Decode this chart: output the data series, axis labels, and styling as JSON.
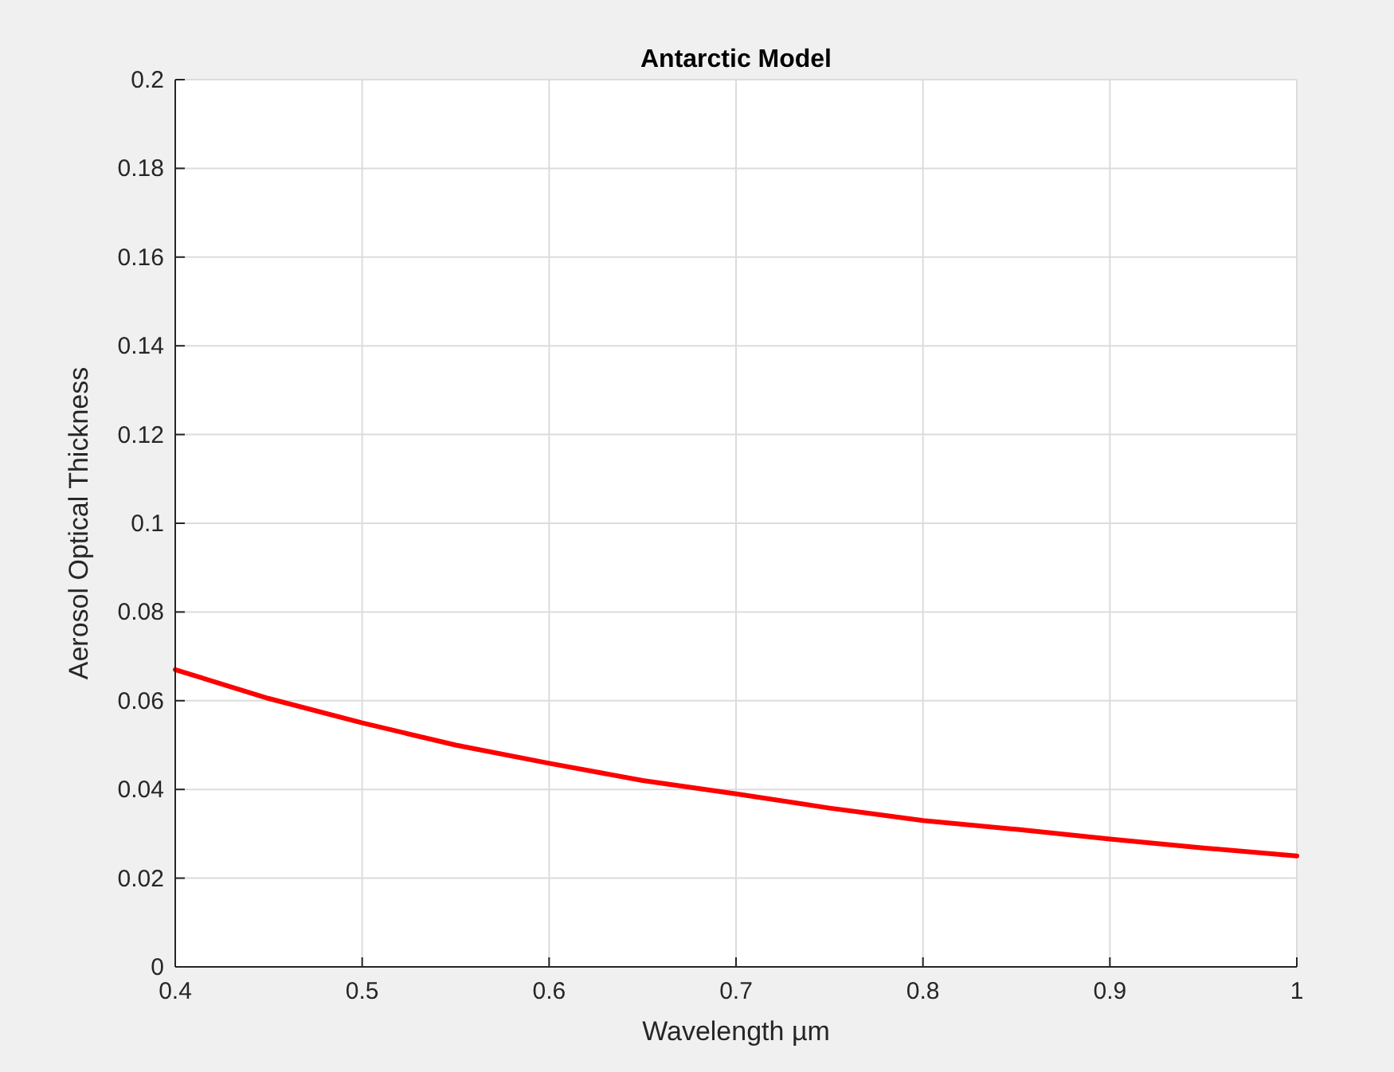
{
  "chart_data": {
    "type": "line",
    "title": "Antarctic Model",
    "xlabel": "Wavelength µm",
    "ylabel": "Aerosol Optical Thickness",
    "x": [
      0.4,
      0.45,
      0.5,
      0.55,
      0.6,
      0.65,
      0.7,
      0.75,
      0.8,
      0.85,
      0.9,
      0.95,
      1.0
    ],
    "series": [
      {
        "color": "#ff0000",
        "values": [
          0.067,
          0.0605,
          0.055,
          0.05,
          0.0459,
          0.042,
          0.039,
          0.0358,
          0.033,
          0.031,
          0.0288,
          0.0268,
          0.025
        ]
      }
    ],
    "xlim": [
      0.4,
      1
    ],
    "xticks": [
      0.4,
      0.5,
      0.6,
      0.7,
      0.8,
      0.9,
      1
    ],
    "ylim": [
      0,
      0.2
    ],
    "yticks": [
      0,
      0.02,
      0.04,
      0.06,
      0.08,
      0.1,
      0.12,
      0.14,
      0.16,
      0.18,
      0.2
    ],
    "grid": true,
    "line_style": "solid",
    "marker": "none"
  }
}
